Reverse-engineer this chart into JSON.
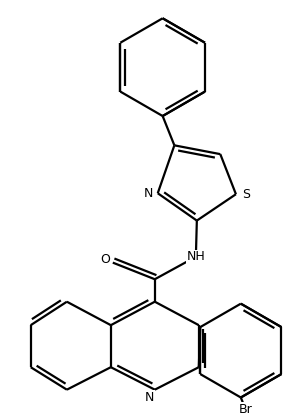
{
  "background_color": "#ffffff",
  "line_color": "#000000",
  "line_width": 1.6,
  "dpi": 100,
  "figsize": [
    2.94,
    4.16
  ],
  "atom_labels": {
    "N_thiazole": "N",
    "S_thiazole": "S",
    "NH_amide": "NH",
    "O_amide": "O",
    "N_quinoline": "N",
    "Br": "Br"
  },
  "font_size": 9.0
}
